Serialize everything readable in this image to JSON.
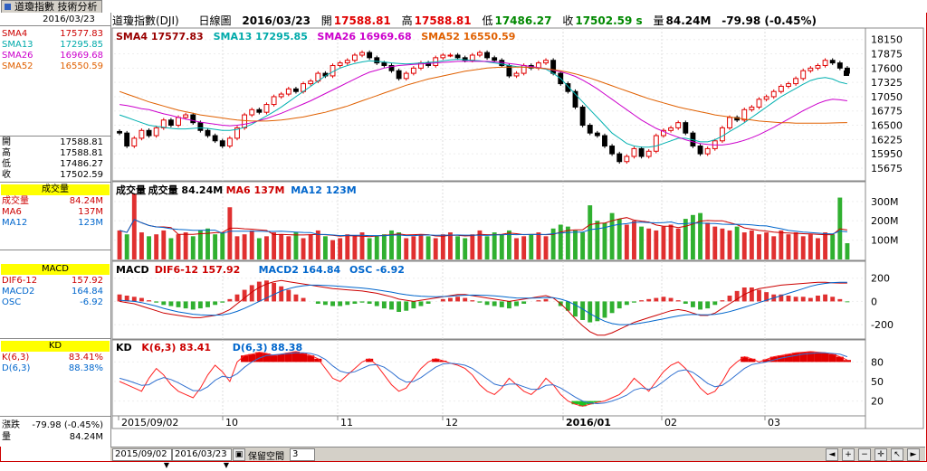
{
  "tab": {
    "title": "道瓊指數 技術分析"
  },
  "left": {
    "date": "2016/03/23",
    "sma": [
      {
        "label": "SMA4",
        "value": "17577.83",
        "color": "#cc0000"
      },
      {
        "label": "SMA13",
        "value": "17295.85",
        "color": "#00aaaa"
      },
      {
        "label": "SMA26",
        "value": "16969.68",
        "color": "#cc00cc"
      },
      {
        "label": "SMA52",
        "value": "16550.59",
        "color": "#e06000"
      }
    ],
    "ohlc": [
      {
        "label": "開",
        "value": "17588.81"
      },
      {
        "label": "高",
        "value": "17588.81"
      },
      {
        "label": "低",
        "value": "17486.27"
      },
      {
        "label": "收",
        "value": "17502.59"
      }
    ],
    "vol_title": "成交量",
    "vol": [
      {
        "label": "成交量",
        "value": "84.24M",
        "color": "#cc0000"
      },
      {
        "label": "MA6",
        "value": "137M",
        "color": "#cc0000"
      },
      {
        "label": "MA12",
        "value": "123M",
        "color": "#0066cc"
      }
    ],
    "macd_title": "MACD",
    "macd": [
      {
        "label": "DIF6-12",
        "value": "157.92",
        "color": "#cc0000"
      },
      {
        "label": "MACD2",
        "value": "164.84",
        "color": "#0066cc"
      },
      {
        "label": "OSC",
        "value": "-6.92",
        "color": "#0066cc"
      }
    ],
    "kd_title": "KD",
    "kd": [
      {
        "label": "K(6,3)",
        "value": "83.41%",
        "color": "#cc0000"
      },
      {
        "label": "D(6,3)",
        "value": "88.38%",
        "color": "#0066cc"
      }
    ],
    "change_label": "漲跌",
    "change_value": "-79.98 (-0.45%)",
    "volume_label": "量",
    "volume_value": "84.24M"
  },
  "header": {
    "name": "道瓊指數(DJI)",
    "period": "日線圖",
    "date": "2016/03/23",
    "open_label": "開",
    "open": "17588.81",
    "high_label": "高",
    "high": "17588.81",
    "low_label": "低",
    "low": "17486.27",
    "close_label": "收",
    "close": "17502.59 s",
    "vol_label": "量",
    "vol": "84.24M",
    "change": "-79.98 (-0.45%)"
  },
  "price_legend": [
    {
      "text": "SMA4 17577.83",
      "color": "#990000"
    },
    {
      "text": "SMA13 17295.85",
      "color": "#00aaaa"
    },
    {
      "text": "SMA26 16969.68",
      "color": "#cc00cc"
    },
    {
      "text": "SMA52 16550.59",
      "color": "#e06000"
    }
  ],
  "vol_legend": [
    {
      "text": "成交量",
      "color": "#000"
    },
    {
      "text": "成交量 84.24M",
      "color": "#000"
    },
    {
      "text": "MA6 137M",
      "color": "#cc0000"
    },
    {
      "text": "MA12 123M",
      "color": "#0066cc"
    }
  ],
  "macd_legend": [
    {
      "text": "MACD",
      "color": "#000"
    },
    {
      "text": "DIF6-12 157.92",
      "color": "#cc0000"
    },
    {
      "text": "MACD2 164.84",
      "color": "#0066cc"
    },
    {
      "text": "OSC -6.92",
      "color": "#0066cc"
    }
  ],
  "kd_legend": [
    {
      "text": "KD",
      "color": "#000"
    },
    {
      "text": "K(6,3) 83.41",
      "color": "#cc0000"
    },
    {
      "text": "D(6,3) 88.38",
      "color": "#0066cc"
    }
  ],
  "price_axis": [
    "18150",
    "17875",
    "17600",
    "17325",
    "17050",
    "16775",
    "16500",
    "16225",
    "15950",
    "15675"
  ],
  "vol_axis": [
    "300M",
    "200M",
    "100M"
  ],
  "macd_axis": [
    "200",
    "0",
    "-200"
  ],
  "kd_axis": [
    "80",
    "50",
    "20"
  ],
  "x_axis": [
    "2015/09/02",
    "10",
    "11",
    "12",
    "2016/01",
    "02",
    "03"
  ],
  "bottom": {
    "start_date": "2015/09/02",
    "end_date": "2016/03/23",
    "space_label": "保留空間",
    "space_value": "3"
  },
  "chart_data": {
    "type": "candlestick",
    "price_ylim": [
      15500,
      18250
    ],
    "close": [
      16350,
      16100,
      16250,
      16400,
      16300,
      16450,
      16600,
      16500,
      16650,
      16700,
      16550,
      16400,
      16300,
      16200,
      16100,
      16250,
      16450,
      16700,
      16800,
      16750,
      16900,
      17050,
      17100,
      17200,
      17150,
      17300,
      17350,
      17500,
      17450,
      17650,
      17700,
      17750,
      17850,
      17900,
      17800,
      17700,
      17650,
      17550,
      17400,
      17500,
      17600,
      17700,
      17650,
      17800,
      17850,
      17850,
      17800,
      17750,
      17850,
      17900,
      17800,
      17750,
      17650,
      17450,
      17500,
      17650,
      17600,
      17700,
      17750,
      17500,
      17300,
      17150,
      16850,
      16500,
      16350,
      16300,
      16100,
      15950,
      15800,
      15900,
      16050,
      15900,
      16000,
      16300,
      16400,
      16450,
      16550,
      16350,
      16100,
      15950,
      16050,
      16200,
      16450,
      16650,
      16600,
      16800,
      16850,
      17000,
      17050,
      17150,
      17250,
      17300,
      17400,
      17550,
      17600,
      17650,
      17750,
      17700,
      17600,
      17502
    ],
    "sma13": [
      16700,
      16650,
      16600,
      16550,
      16500,
      16480,
      16460,
      16440,
      16430,
      16430,
      16440,
      16450,
      16440,
      16420,
      16400,
      16400,
      16420,
      16460,
      16520,
      16600,
      16680,
      16760,
      16850,
      16950,
      17050,
      17150,
      17250,
      17350,
      17450,
      17530,
      17600,
      17650,
      17690,
      17720,
      17740,
      17730,
      17720,
      17700,
      17690,
      17680,
      17690,
      17700,
      17710,
      17720,
      17740,
      17760,
      17770,
      17760,
      17750,
      17740,
      17720,
      17700,
      17680,
      17650,
      17630,
      17620,
      17610,
      17600,
      17580,
      17500,
      17400,
      17250,
      17100,
      16950,
      16800,
      16650,
      16500,
      16350,
      16250,
      16150,
      16100,
      16080,
      16080,
      16100,
      16150,
      16200,
      16250,
      16250,
      16220,
      16180,
      16180,
      16220,
      16290,
      16380,
      16460,
      16550,
      16650,
      16750,
      16850,
      16950,
      17050,
      17130,
      17210,
      17290,
      17360,
      17400,
      17420,
      17390,
      17330,
      17296
    ],
    "sma26": [
      16900,
      16880,
      16850,
      16820,
      16800,
      16760,
      16720,
      16690,
      16650,
      16620,
      16590,
      16560,
      16540,
      16520,
      16500,
      16490,
      16500,
      16520,
      16550,
      16590,
      16630,
      16680,
      16730,
      16790,
      16850,
      16910,
      16970,
      17040,
      17110,
      17180,
      17250,
      17320,
      17390,
      17460,
      17520,
      17560,
      17600,
      17630,
      17650,
      17660,
      17670,
      17680,
      17690,
      17700,
      17710,
      17720,
      17730,
      17730,
      17730,
      17730,
      17730,
      17720,
      17710,
      17690,
      17670,
      17650,
      17630,
      17610,
      17590,
      17560,
      17530,
      17490,
      17440,
      17370,
      17290,
      17200,
      17100,
      17000,
      16900,
      16800,
      16700,
      16600,
      16520,
      16440,
      16380,
      16320,
      16270,
      16220,
      16180,
      16150,
      16130,
      16120,
      16120,
      16140,
      16170,
      16210,
      16260,
      16320,
      16390,
      16460,
      16540,
      16620,
      16700,
      16780,
      16850,
      16920,
      16970,
      17000,
      16990,
      16970
    ],
    "sma52": [
      17150,
      17100,
      17050,
      17000,
      16950,
      16910,
      16870,
      16830,
      16790,
      16760,
      16730,
      16700,
      16680,
      16660,
      16640,
      16620,
      16600,
      16590,
      16580,
      16580,
      16580,
      16590,
      16600,
      16620,
      16640,
      16660,
      16690,
      16720,
      16750,
      16790,
      16830,
      16870,
      16920,
      16970,
      17020,
      17070,
      17120,
      17170,
      17220,
      17270,
      17310,
      17350,
      17390,
      17420,
      17450,
      17480,
      17510,
      17540,
      17560,
      17580,
      17600,
      17610,
      17620,
      17620,
      17620,
      17620,
      17610,
      17600,
      17590,
      17570,
      17550,
      17520,
      17490,
      17450,
      17410,
      17360,
      17310,
      17260,
      17210,
      17160,
      17110,
      17060,
      17010,
      16970,
      16930,
      16890,
      16850,
      16820,
      16790,
      16760,
      16730,
      16700,
      16680,
      16660,
      16640,
      16620,
      16600,
      16580,
      16570,
      16560,
      16550,
      16550,
      16540,
      16540,
      16540,
      16540,
      16540,
      16545,
      16548,
      16551
    ],
    "volume": [
      150,
      130,
      340,
      140,
      120,
      130,
      150,
      110,
      130,
      140,
      120,
      150,
      160,
      130,
      140,
      270,
      120,
      130,
      150,
      110,
      120,
      140,
      130,
      120,
      140,
      110,
      130,
      150,
      120,
      100,
      110,
      130,
      120,
      140,
      110,
      120,
      130,
      150,
      140,
      110,
      120,
      130,
      120,
      110,
      130,
      140,
      120,
      110,
      130,
      150,
      120,
      140,
      130,
      150,
      110,
      120,
      130,
      140,
      120,
      160,
      180,
      170,
      150,
      140,
      280,
      200,
      190,
      240,
      210,
      180,
      200,
      170,
      160,
      150,
      170,
      180,
      160,
      210,
      230,
      240,
      190,
      170,
      160,
      150,
      170,
      140,
      150,
      130,
      140,
      120,
      150,
      130,
      140,
      120,
      130,
      110,
      140,
      130,
      320,
      84
    ],
    "macd_osc": [
      60,
      50,
      40,
      30,
      10,
      -10,
      -30,
      -40,
      -50,
      -60,
      -70,
      -60,
      -50,
      -30,
      -10,
      20,
      60,
      100,
      140,
      170,
      180,
      160,
      130,
      100,
      60,
      30,
      0,
      -20,
      -30,
      -40,
      -40,
      -30,
      -20,
      -10,
      -20,
      -40,
      -60,
      -70,
      -90,
      -80,
      -60,
      -40,
      -20,
      0,
      20,
      30,
      40,
      30,
      10,
      -10,
      -30,
      -40,
      -50,
      -60,
      -40,
      -20,
      0,
      10,
      20,
      0,
      -40,
      -80,
      -130,
      -160,
      -180,
      -170,
      -140,
      -100,
      -60,
      -30,
      -10,
      10,
      20,
      30,
      40,
      30,
      10,
      -20,
      -50,
      -70,
      -60,
      -30,
      10,
      50,
      90,
      120,
      120,
      100,
      80,
      60,
      60,
      50,
      40,
      40,
      30,
      50,
      60,
      40,
      20,
      -7
    ],
    "dif": [
      0,
      -10,
      -20,
      -40,
      -60,
      -80,
      -100,
      -110,
      -120,
      -130,
      -140,
      -140,
      -130,
      -120,
      -100,
      -70,
      -20,
      30,
      80,
      120,
      150,
      170,
      180,
      170,
      160,
      150,
      140,
      130,
      120,
      110,
      105,
      100,
      95,
      90,
      80,
      70,
      55,
      40,
      20,
      10,
      0,
      10,
      20,
      30,
      40,
      50,
      60,
      60,
      50,
      40,
      30,
      20,
      10,
      0,
      10,
      20,
      30,
      40,
      50,
      30,
      -20,
      -80,
      -150,
      -210,
      -260,
      -290,
      -290,
      -270,
      -240,
      -210,
      -180,
      -160,
      -140,
      -120,
      -100,
      -80,
      -70,
      -80,
      -100,
      -120,
      -120,
      -100,
      -60,
      -20,
      20,
      60,
      90,
      110,
      120,
      130,
      140,
      145,
      150,
      155,
      160,
      165,
      165,
      160,
      158,
      158
    ],
    "dea": [
      10,
      5,
      0,
      -10,
      -25,
      -40,
      -60,
      -75,
      -90,
      -100,
      -110,
      -115,
      -118,
      -118,
      -115,
      -105,
      -85,
      -60,
      -30,
      0,
      30,
      60,
      90,
      110,
      125,
      135,
      140,
      140,
      138,
      135,
      130,
      125,
      120,
      115,
      108,
      100,
      90,
      80,
      68,
      58,
      50,
      45,
      42,
      40,
      42,
      45,
      50,
      53,
      55,
      54,
      52,
      48,
      42,
      35,
      30,
      28,
      28,
      30,
      34,
      33,
      20,
      0,
      -30,
      -65,
      -105,
      -140,
      -170,
      -190,
      -200,
      -200,
      -195,
      -185,
      -175,
      -162,
      -150,
      -137,
      -125,
      -116,
      -112,
      -114,
      -115,
      -112,
      -102,
      -88,
      -70,
      -50,
      -30,
      -10,
      10,
      30,
      50,
      70,
      90,
      110,
      130,
      145,
      155,
      162,
      164,
      165
    ],
    "k": [
      50,
      45,
      40,
      35,
      55,
      70,
      60,
      45,
      35,
      30,
      25,
      40,
      60,
      75,
      65,
      50,
      80,
      90,
      92,
      95,
      93,
      90,
      92,
      94,
      96,
      93,
      90,
      85,
      70,
      55,
      50,
      60,
      70,
      80,
      85,
      75,
      60,
      45,
      35,
      40,
      55,
      70,
      80,
      85,
      82,
      78,
      75,
      70,
      60,
      45,
      35,
      30,
      40,
      55,
      45,
      35,
      30,
      40,
      55,
      45,
      30,
      20,
      15,
      12,
      15,
      18,
      20,
      25,
      30,
      40,
      55,
      45,
      35,
      50,
      65,
      75,
      80,
      70,
      55,
      40,
      30,
      35,
      50,
      70,
      80,
      88,
      85,
      80,
      84,
      88,
      90,
      92,
      94,
      95,
      96,
      95,
      94,
      92,
      88,
      83
    ],
    "d": [
      55,
      52,
      48,
      44,
      45,
      52,
      56,
      53,
      48,
      42,
      36,
      36,
      42,
      52,
      58,
      56,
      62,
      72,
      80,
      86,
      90,
      91,
      92,
      93,
      94,
      94,
      93,
      90,
      84,
      74,
      66,
      63,
      65,
      70,
      75,
      76,
      72,
      64,
      55,
      49,
      50,
      56,
      64,
      72,
      77,
      78,
      77,
      75,
      70,
      62,
      54,
      46,
      43,
      46,
      46,
      42,
      38,
      38,
      44,
      45,
      40,
      33,
      26,
      20,
      17,
      16,
      17,
      20,
      24,
      29,
      37,
      40,
      38,
      42,
      50,
      59,
      66,
      68,
      64,
      56,
      47,
      42,
      44,
      52,
      61,
      70,
      76,
      78,
      80,
      83,
      86,
      88,
      90,
      92,
      93,
      94,
      94,
      93,
      92,
      88
    ]
  }
}
